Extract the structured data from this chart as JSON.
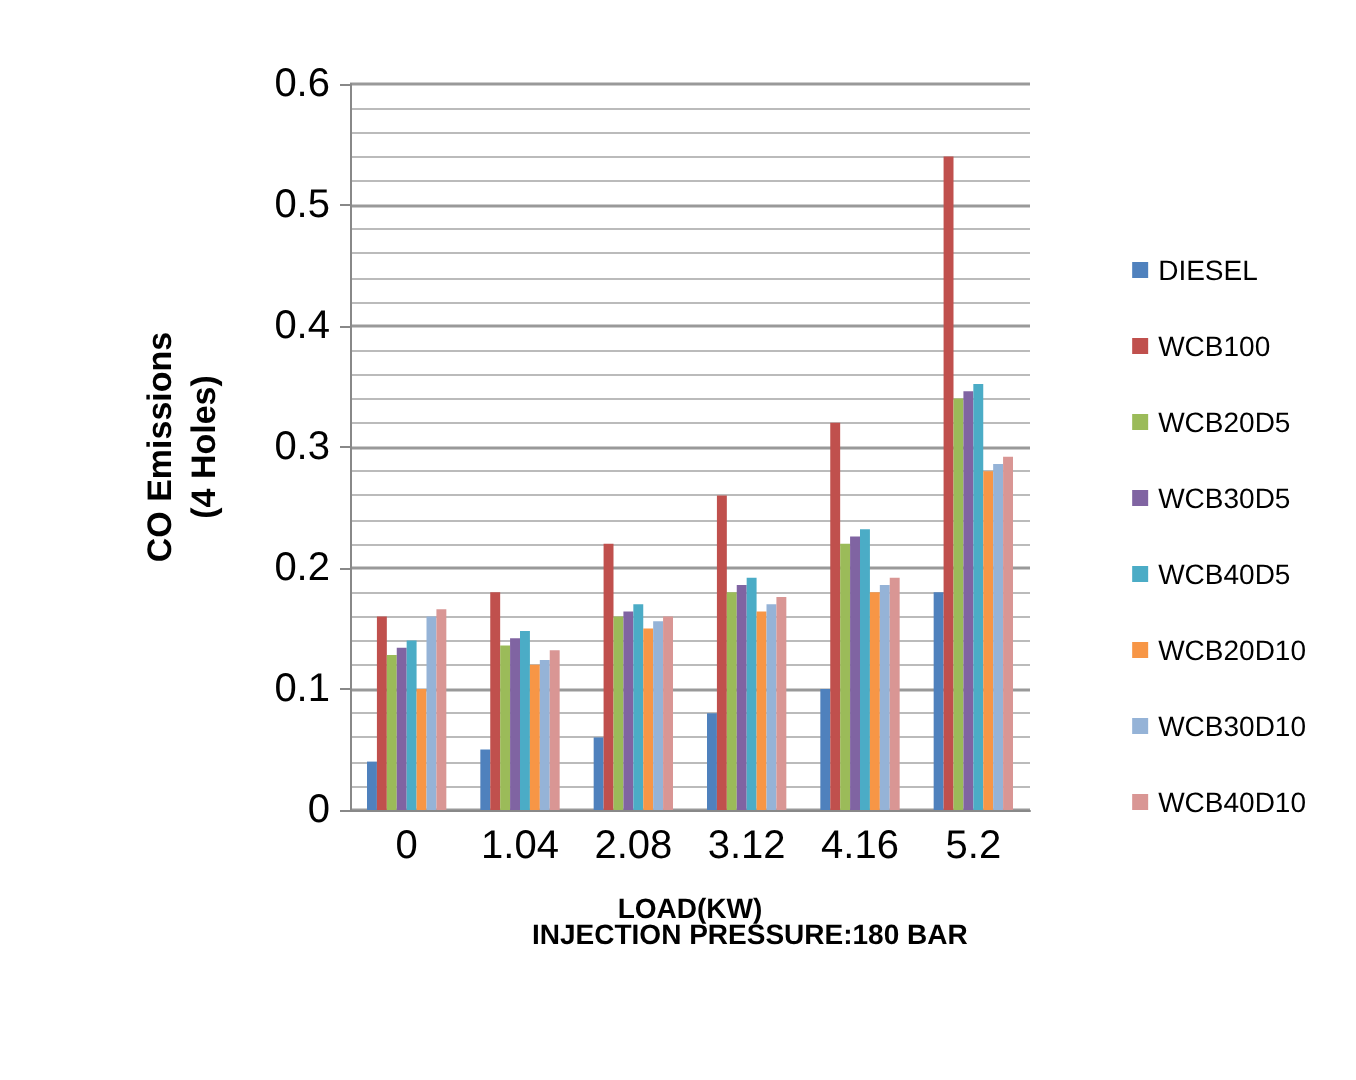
{
  "chart_data": {
    "type": "bar",
    "xlabel": "LOAD(KW)",
    "ylabel": "CO Emissions\n(4 Holes)",
    "annotations": [
      "INJECTION PRESSURE:180 BAR"
    ],
    "categories": [
      "0",
      "1.04",
      "2.08",
      "3.12",
      "4.16",
      "5.2"
    ],
    "series": [
      {
        "name": "DIESEL",
        "color": "#4f81bd",
        "values": [
          0.04,
          0.05,
          0.06,
          0.08,
          0.1,
          0.18
        ]
      },
      {
        "name": "WCB100",
        "color": "#c0504d",
        "values": [
          0.16,
          0.18,
          0.22,
          0.26,
          0.32,
          0.54
        ]
      },
      {
        "name": "WCB20D5",
        "color": "#9bbb59",
        "values": [
          0.128,
          0.136,
          0.16,
          0.18,
          0.22,
          0.34
        ]
      },
      {
        "name": "WCB30D5",
        "color": "#8064a2",
        "values": [
          0.134,
          0.142,
          0.164,
          0.186,
          0.226,
          0.346
        ]
      },
      {
        "name": "WCB40D5",
        "color": "#4bacc6",
        "values": [
          0.14,
          0.148,
          0.17,
          0.192,
          0.232,
          0.352
        ]
      },
      {
        "name": "WCB20D10",
        "color": "#f79646",
        "values": [
          0.1,
          0.12,
          0.15,
          0.164,
          0.18,
          0.28
        ]
      },
      {
        "name": "WCB30D10",
        "color": "#95b3d7",
        "values": [
          0.16,
          0.124,
          0.156,
          0.17,
          0.186,
          0.286
        ]
      },
      {
        "name": "WCB40D10",
        "color": "#d99694",
        "values": [
          0.166,
          0.132,
          0.16,
          0.176,
          0.192,
          0.292
        ]
      }
    ],
    "ylim": [
      0,
      0.6
    ],
    "yticks": [
      0,
      0.1,
      0.2,
      0.3,
      0.4,
      0.5,
      0.6
    ],
    "grid": "y",
    "legend": "right"
  }
}
